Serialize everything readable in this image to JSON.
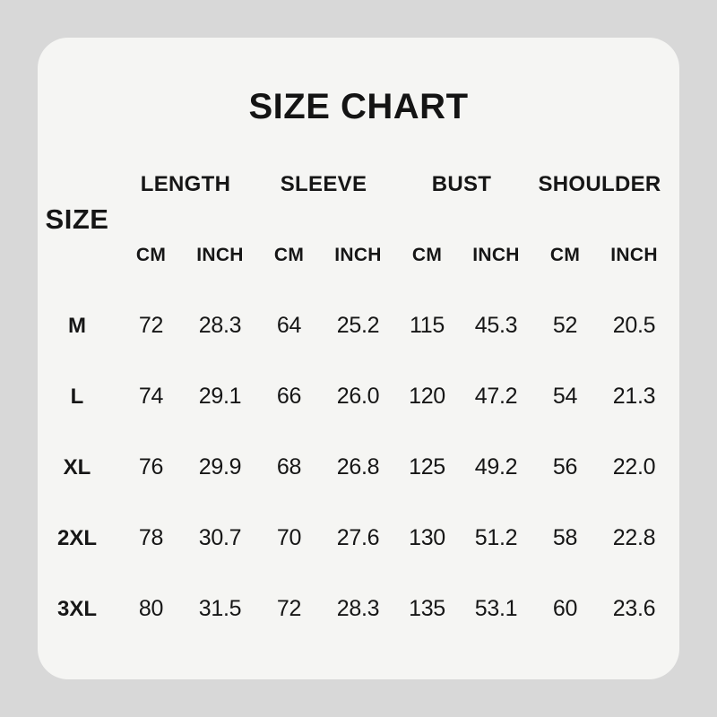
{
  "page_title": "SIZE CHART",
  "colors": {
    "background": "#d8d8d8",
    "card": "#f5f5f3",
    "text": "#141414"
  },
  "chart_data": {
    "type": "table",
    "title": "SIZE CHART",
    "corner_label": "SIZE",
    "groups": [
      "LENGTH",
      "SLEEVE",
      "BUST",
      "SHOULDER"
    ],
    "unit_headers": [
      "CM",
      "INCH",
      "CM",
      "INCH",
      "CM",
      "INCH",
      "CM",
      "INCH"
    ],
    "rows": [
      {
        "size": "M",
        "values": [
          "72",
          "28.3",
          "64",
          "25.2",
          "115",
          "45.3",
          "52",
          "20.5"
        ]
      },
      {
        "size": "L",
        "values": [
          "74",
          "29.1",
          "66",
          "26.0",
          "120",
          "47.2",
          "54",
          "21.3"
        ]
      },
      {
        "size": "XL",
        "values": [
          "76",
          "29.9",
          "68",
          "26.8",
          "125",
          "49.2",
          "56",
          "22.0"
        ]
      },
      {
        "size": "2XL",
        "values": [
          "78",
          "30.7",
          "70",
          "27.6",
          "130",
          "51.2",
          "58",
          "22.8"
        ]
      },
      {
        "size": "3XL",
        "values": [
          "80",
          "31.5",
          "72",
          "28.3",
          "135",
          "53.1",
          "60",
          "23.6"
        ]
      }
    ]
  }
}
